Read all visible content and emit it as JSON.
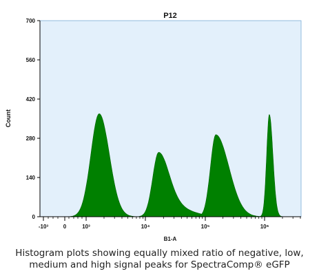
{
  "chart_data": {
    "type": "area",
    "title": "P12",
    "xlabel": "B1-A",
    "ylabel": "Count",
    "ylim": [
      0,
      700
    ],
    "y_ticks": [
      0,
      140,
      280,
      420,
      560,
      700
    ],
    "y_tick_labels": [
      "0",
      "140",
      "280",
      "420",
      "560",
      "700"
    ],
    "x_tick_labels": [
      "-10³",
      "0",
      "10³",
      "10⁴",
      "10⁵",
      "10⁶"
    ],
    "x_scale": "biexponential",
    "fill_color": "#008000",
    "plot_background": "#e3f0fb",
    "grid": false,
    "legend": "none",
    "peaks": [
      {
        "center_log10": 3.22,
        "height": 368
      },
      {
        "center_log10": 4.22,
        "height": 230
      },
      {
        "center_log10": 5.18,
        "height": 293
      },
      {
        "center_log10": 6.08,
        "height": 365
      }
    ]
  },
  "caption": {
    "line1": "Histogram plots showing equally mixed ratio of negative, low,",
    "line2": "medium and high signal peaks for SpectraComp® eGFP"
  }
}
